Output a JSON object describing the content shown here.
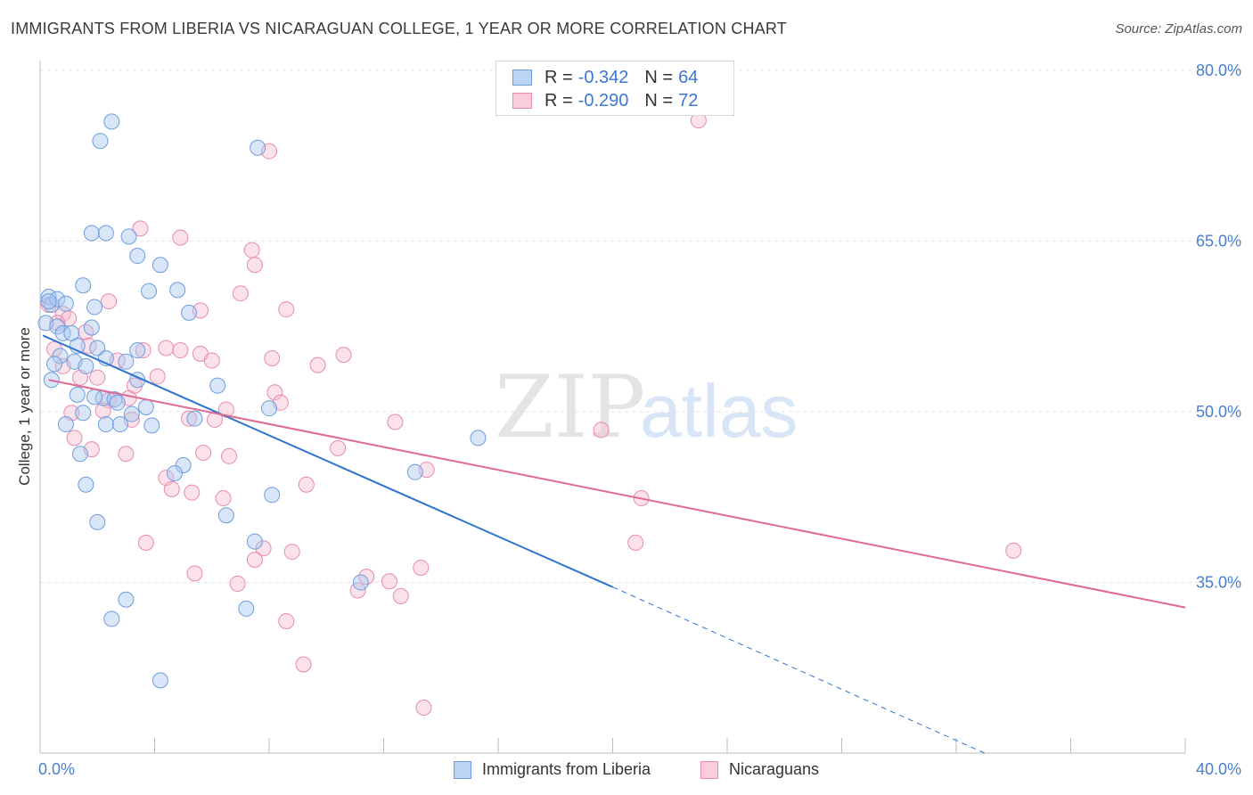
{
  "title": "IMMIGRANTS FROM LIBERIA VS NICARAGUAN COLLEGE, 1 YEAR OR MORE CORRELATION CHART",
  "source": "Source: ZipAtlas.com",
  "watermark": {
    "zip": "ZIP",
    "atlas": "atlas"
  },
  "legend": {
    "rows": [
      {
        "r_label": "R =",
        "r_value": "-0.342",
        "n_label": "N =",
        "n_value": "64"
      },
      {
        "r_label": "R =",
        "r_value": "-0.290",
        "n_label": "N =",
        "n_value": "72"
      }
    ]
  },
  "bottom_legend": [
    "Immigrants from Liberia",
    "Nicaraguans"
  ],
  "colors": {
    "blue_fill": "#a9c8f0",
    "blue_stroke": "#6d9de0",
    "blue_line": "#2f74d0",
    "pink_fill": "#f6bfd1",
    "pink_stroke": "#e88aab",
    "pink_line": "#e06a93",
    "tick": "#4a7fcf",
    "grid": "#e3e3e3"
  },
  "chart_data": {
    "type": "scatter",
    "title": "IMMIGRANTS FROM LIBERIA VS NICARAGUAN COLLEGE, 1 YEAR OR MORE CORRELATION CHART",
    "ylabel": "College, 1 year or more",
    "xlabel": "",
    "xlim": [
      0,
      40
    ],
    "ylim": [
      20,
      82
    ],
    "x_tick_labels": [
      "0.0%",
      "40.0%"
    ],
    "y_ticks": [
      35,
      50,
      65,
      80
    ],
    "y_tick_labels": [
      "35.0%",
      "50.0%",
      "65.0%",
      "80.0%"
    ],
    "grid": true,
    "series": [
      {
        "name": "Immigrants from Liberia",
        "color": "blue",
        "r": -0.342,
        "n": 64,
        "trend": {
          "x0": 0.1,
          "y0": 56.7,
          "x1": 20.0,
          "y1": 34.6,
          "dash_to_x": 33.0,
          "dash_to_y": 20.0
        },
        "points": [
          [
            2.5,
            75.5
          ],
          [
            2.1,
            73.8
          ],
          [
            7.6,
            73.2
          ],
          [
            1.8,
            65.7
          ],
          [
            2.3,
            65.7
          ],
          [
            3.1,
            65.4
          ],
          [
            3.4,
            63.7
          ],
          [
            4.2,
            62.9
          ],
          [
            1.5,
            61.1
          ],
          [
            3.8,
            60.6
          ],
          [
            4.8,
            60.7
          ],
          [
            0.3,
            60.1
          ],
          [
            0.4,
            59.4
          ],
          [
            1.9,
            59.2
          ],
          [
            5.2,
            58.7
          ],
          [
            0.2,
            57.8
          ],
          [
            0.6,
            57.5
          ],
          [
            1.8,
            57.4
          ],
          [
            0.8,
            56.9
          ],
          [
            1.3,
            55.8
          ],
          [
            2.0,
            55.6
          ],
          [
            3.4,
            55.4
          ],
          [
            0.7,
            54.9
          ],
          [
            2.3,
            54.7
          ],
          [
            1.2,
            54.4
          ],
          [
            3.0,
            54.4
          ],
          [
            0.5,
            54.2
          ],
          [
            1.6,
            54.0
          ],
          [
            0.4,
            52.8
          ],
          [
            3.4,
            52.8
          ],
          [
            6.2,
            52.3
          ],
          [
            1.3,
            51.5
          ],
          [
            2.2,
            51.2
          ],
          [
            2.6,
            51.1
          ],
          [
            2.7,
            50.8
          ],
          [
            3.7,
            50.4
          ],
          [
            8.0,
            50.3
          ],
          [
            1.5,
            49.9
          ],
          [
            3.2,
            49.8
          ],
          [
            5.4,
            49.4
          ],
          [
            0.9,
            48.9
          ],
          [
            2.3,
            48.9
          ],
          [
            2.8,
            48.9
          ],
          [
            3.9,
            48.8
          ],
          [
            15.3,
            47.7
          ],
          [
            1.4,
            46.3
          ],
          [
            5.0,
            45.3
          ],
          [
            13.1,
            44.7
          ],
          [
            4.7,
            44.6
          ],
          [
            1.6,
            43.6
          ],
          [
            8.1,
            42.7
          ],
          [
            6.5,
            40.9
          ],
          [
            2.0,
            40.3
          ],
          [
            7.5,
            38.6
          ],
          [
            11.2,
            35.0
          ],
          [
            3.0,
            33.5
          ],
          [
            7.2,
            32.7
          ],
          [
            2.5,
            31.8
          ],
          [
            4.2,
            26.4
          ],
          [
            0.6,
            59.9
          ],
          [
            0.9,
            59.5
          ],
          [
            0.3,
            59.7
          ],
          [
            1.1,
            56.9
          ],
          [
            1.9,
            51.3
          ]
        ]
      },
      {
        "name": "Nicaraguans",
        "color": "pink",
        "r": -0.29,
        "n": 72,
        "trend": {
          "x0": 0.3,
          "y0": 52.8,
          "x1": 40.0,
          "y1": 32.8
        },
        "points": [
          [
            23.0,
            75.6
          ],
          [
            8.0,
            72.9
          ],
          [
            3.5,
            66.1
          ],
          [
            4.9,
            65.3
          ],
          [
            7.4,
            64.2
          ],
          [
            7.5,
            62.9
          ],
          [
            7.0,
            60.4
          ],
          [
            2.4,
            59.7
          ],
          [
            0.3,
            59.4
          ],
          [
            5.6,
            58.9
          ],
          [
            8.6,
            59.0
          ],
          [
            0.8,
            58.6
          ],
          [
            1.0,
            58.2
          ],
          [
            1.6,
            57.0
          ],
          [
            0.5,
            55.5
          ],
          [
            4.4,
            55.6
          ],
          [
            3.6,
            55.4
          ],
          [
            4.9,
            55.4
          ],
          [
            5.6,
            55.1
          ],
          [
            10.6,
            55.0
          ],
          [
            8.1,
            54.7
          ],
          [
            6.0,
            54.5
          ],
          [
            2.7,
            54.5
          ],
          [
            9.7,
            54.1
          ],
          [
            0.8,
            54.0
          ],
          [
            1.4,
            53.0
          ],
          [
            2.0,
            53.0
          ],
          [
            4.1,
            53.1
          ],
          [
            8.2,
            51.7
          ],
          [
            8.4,
            50.8
          ],
          [
            3.1,
            51.2
          ],
          [
            2.4,
            51.0
          ],
          [
            2.2,
            50.1
          ],
          [
            6.5,
            50.2
          ],
          [
            1.1,
            49.9
          ],
          [
            5.2,
            49.4
          ],
          [
            6.1,
            49.3
          ],
          [
            12.4,
            49.1
          ],
          [
            3.2,
            49.3
          ],
          [
            19.6,
            48.4
          ],
          [
            1.2,
            47.7
          ],
          [
            10.4,
            46.8
          ],
          [
            1.8,
            46.7
          ],
          [
            3.0,
            46.3
          ],
          [
            5.7,
            46.4
          ],
          [
            6.6,
            46.1
          ],
          [
            13.5,
            44.9
          ],
          [
            4.4,
            44.2
          ],
          [
            9.3,
            43.6
          ],
          [
            4.6,
            43.2
          ],
          [
            5.3,
            42.9
          ],
          [
            6.4,
            42.4
          ],
          [
            21.0,
            42.4
          ],
          [
            3.7,
            38.5
          ],
          [
            20.8,
            38.5
          ],
          [
            34.0,
            37.8
          ],
          [
            7.8,
            38.0
          ],
          [
            8.8,
            37.7
          ],
          [
            7.5,
            37.0
          ],
          [
            13.3,
            36.3
          ],
          [
            5.4,
            35.8
          ],
          [
            11.4,
            35.5
          ],
          [
            12.2,
            35.1
          ],
          [
            6.9,
            34.9
          ],
          [
            11.1,
            34.3
          ],
          [
            12.6,
            33.8
          ],
          [
            8.6,
            31.6
          ],
          [
            9.2,
            27.8
          ],
          [
            13.4,
            24.0
          ],
          [
            0.6,
            57.8
          ],
          [
            1.7,
            55.8
          ],
          [
            3.3,
            52.3
          ]
        ]
      }
    ]
  }
}
